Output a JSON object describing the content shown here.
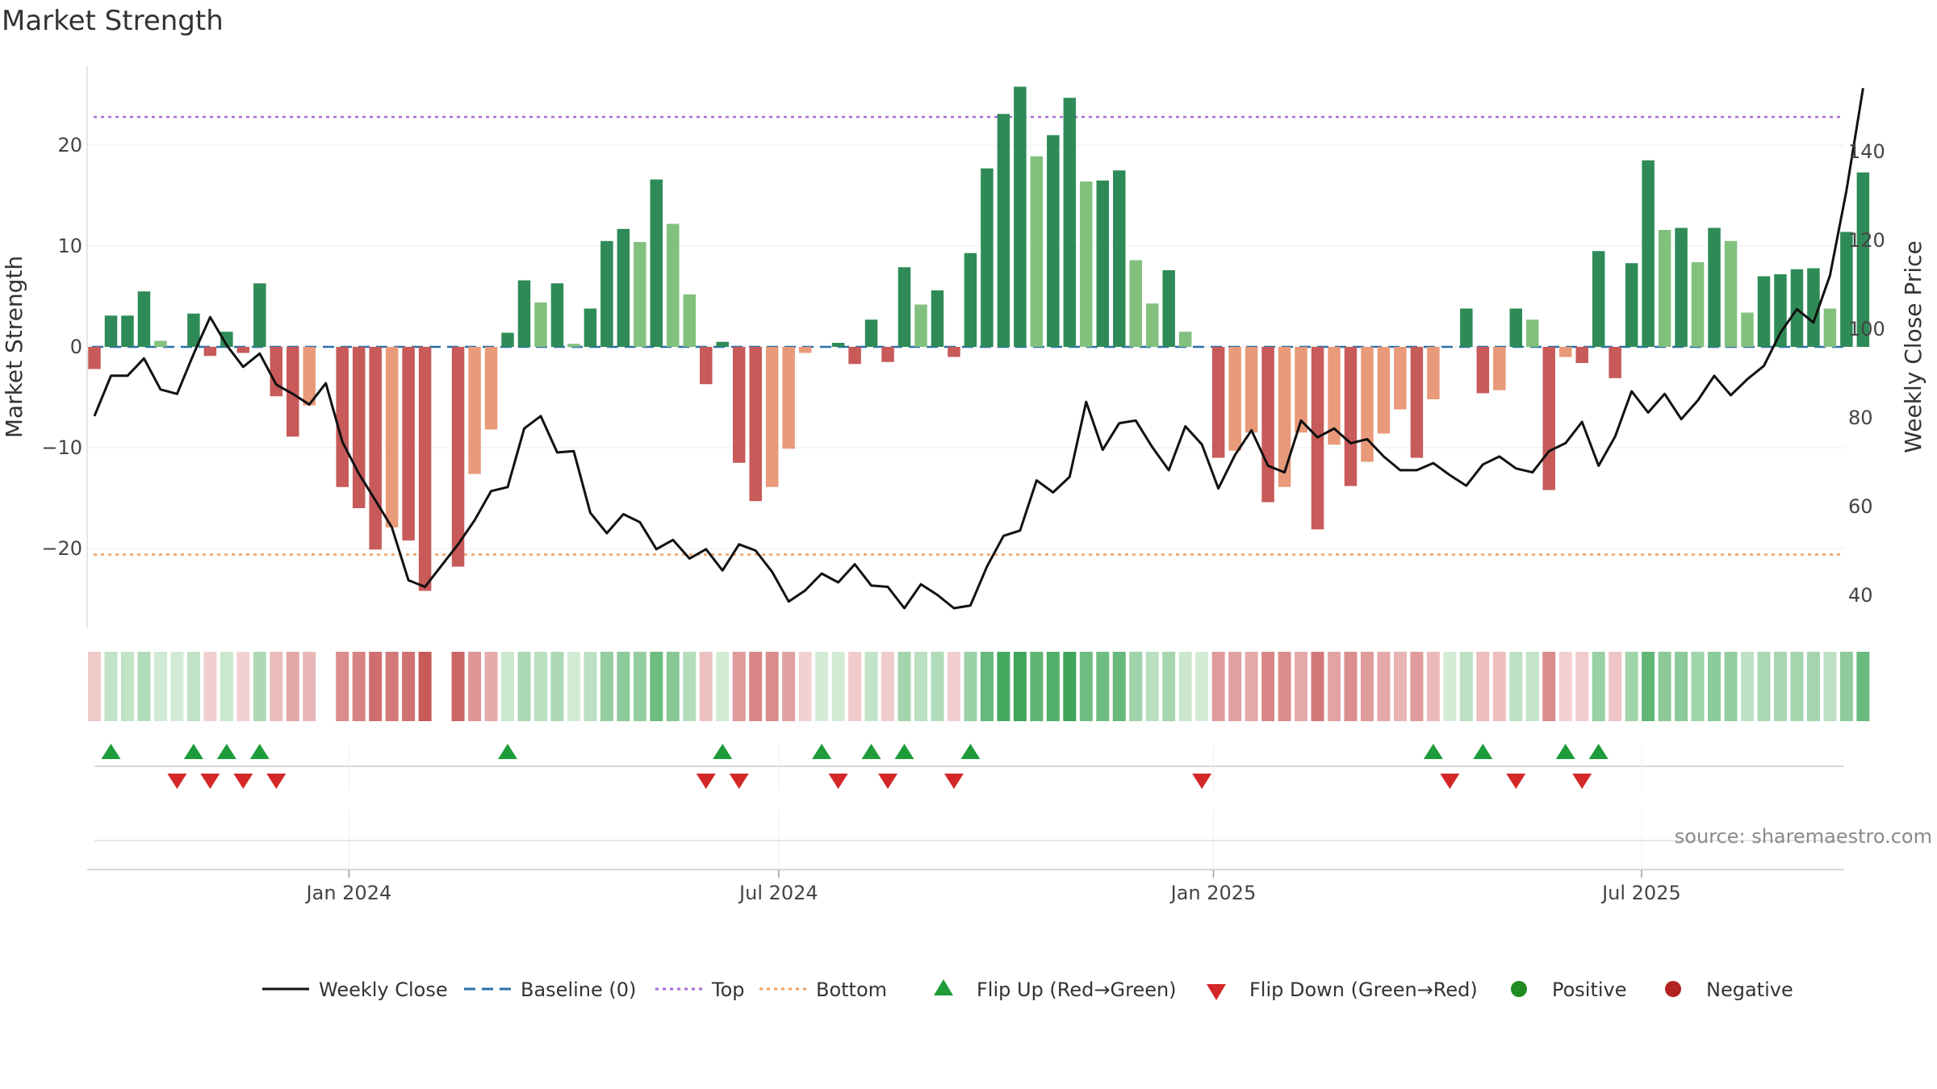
{
  "chart_data": {
    "type": "bar",
    "title": "Market Strength",
    "y_left_label": "Market Strength",
    "y_right_label": "Weekly Close Price",
    "y_left_ticks": [
      20,
      10,
      0,
      -10,
      -20
    ],
    "y_left_tick_labels": [
      "20",
      "10",
      "0",
      "−10",
      "−20"
    ],
    "y_left_range": [
      -27.5,
      27.5
    ],
    "y_right_ticks": [
      140,
      120,
      100,
      80,
      60,
      40
    ],
    "y_right_tick_labels": [
      "140",
      "120",
      "100",
      "80",
      "60",
      "40"
    ],
    "y_right_range": [
      31.4,
      155.2
    ],
    "top_line": 22.8,
    "bottom_line": -20.6,
    "baseline": 0,
    "x_tick_labels": [
      "Jan 2024",
      "Jul 2024",
      "Jan 2025",
      "Jul 2025"
    ],
    "x_tick_weeks": [
      15.4,
      41.4,
      67.7,
      93.6
    ],
    "strength": [
      -2.2,
      3.1,
      3.1,
      5.5,
      0.6,
      0,
      3.3,
      -0.9,
      1.5,
      -0.6,
      6.3,
      -4.9,
      -8.9,
      -5.8,
      0,
      -13.9,
      -16,
      -20.1,
      -17.9,
      -19.2,
      -24.2,
      0,
      -21.8,
      -12.6,
      -8.2,
      1.4,
      6.6,
      4.4,
      6.3,
      0.3,
      3.8,
      10.5,
      11.7,
      10.4,
      16.6,
      12.2,
      5.2,
      -3.7,
      0.5,
      -11.5,
      -15.3,
      -13.9,
      -10.1,
      -0.6,
      0,
      0.4,
      -1.7,
      2.7,
      -1.5,
      7.9,
      4.2,
      5.6,
      -1,
      9.3,
      17.7,
      23.1,
      25.8,
      18.9,
      21,
      24.7,
      16.4,
      16.5,
      17.5,
      8.6,
      4.3,
      7.6,
      1.5,
      0,
      -11,
      -10.3,
      -8.5,
      -15.4,
      -13.9,
      -8.5,
      -18.1,
      -9.7,
      -13.8,
      -11.4,
      -8.6,
      -6.2,
      -11,
      -5.2,
      0,
      3.8,
      -4.6,
      -4.3,
      3.8,
      2.7,
      -14.2,
      -1,
      -1.6,
      9.5,
      -3.1,
      8.3,
      18.5,
      11.6,
      11.8,
      8.4,
      11.8,
      10.5,
      3.4,
      7,
      7.2,
      7.7,
      7.8,
      3.8,
      11.4,
      17.3
    ],
    "close": [
      80.4,
      89.5,
      89.5,
      93.4,
      86.4,
      85.4,
      94.4,
      102.7,
      96.4,
      91.5,
      94.5,
      87.5,
      85.4,
      83,
      87.8,
      74.6,
      67.4,
      61.4,
      55.3,
      43.4,
      41.9,
      46.7,
      51.5,
      56.9,
      63.5,
      64.4,
      77.6,
      80.4,
      72.2,
      72.5,
      58.6,
      54,
      58.3,
      56.5,
      50.4,
      52.5,
      48.3,
      50.4,
      45.6,
      51.5,
      50.1,
      45.3,
      38.6,
      41.1,
      44.9,
      42.9,
      47,
      42.2,
      41.9,
      37.1,
      42.5,
      40.1,
      37.1,
      37.7,
      46.5,
      53.4,
      54.6,
      65.9,
      63.2,
      66.7,
      83.6,
      72.8,
      78.8,
      79.4,
      73.4,
      68.2,
      78.1,
      74,
      64.1,
      71.6,
      77.2,
      69.2,
      67.7,
      79.4,
      75.6,
      77.6,
      74.3,
      75.2,
      71.3,
      68.2,
      68.2,
      69.8,
      67.1,
      64.7,
      69.5,
      71.3,
      68.6,
      67.7,
      72.5,
      74.3,
      79.1,
      69.2,
      75.8,
      86,
      81.2,
      85.4,
      79.7,
      83.9,
      89.5,
      85.1,
      88.7,
      91.7,
      99.2,
      104.5,
      101.5,
      112.1,
      131.3,
      154.3
    ],
    "flip_up_weeks": [
      1,
      6,
      8,
      10,
      25,
      38,
      44,
      47,
      49,
      53,
      81,
      84,
      89,
      91
    ],
    "flip_down_weeks": [
      5,
      7,
      9,
      11,
      37,
      39,
      45,
      48,
      52,
      67,
      82,
      86,
      90
    ],
    "colors": {
      "strong_green": "#2e8b57",
      "light_green": "#82c07e",
      "strong_red": "#c85a5a",
      "light_red": "#e89a7a",
      "close_line": "#111111",
      "baseline": "#2a6fa8",
      "top": "#a86bd6",
      "bottom": "#f0a060",
      "flip_up": "#1e9c3a",
      "flip_down": "#d42828",
      "positive": "#228b22",
      "negative": "#b22222"
    },
    "legend": [
      {
        "label": "Weekly Close",
        "marker": "line",
        "color": "#111111"
      },
      {
        "label": "Baseline (0)",
        "marker": "dash",
        "color": "#2a6fa8"
      },
      {
        "label": "Top",
        "marker": "dot",
        "color": "#a86bd6"
      },
      {
        "label": "Bottom",
        "marker": "dot",
        "color": "#f0a060"
      },
      {
        "label": "Flip Up (Red→Green)",
        "marker": "triangle-up",
        "color": "#1e9c3a"
      },
      {
        "label": "Flip Down (Green→Red)",
        "marker": "triangle-down",
        "color": "#d42828"
      },
      {
        "label": "Positive",
        "marker": "circle",
        "color": "#228b22"
      },
      {
        "label": "Negative",
        "marker": "circle",
        "color": "#b22222"
      }
    ],
    "legend_position": "bottom",
    "grid": true,
    "source": "source: sharemaestro.com"
  }
}
